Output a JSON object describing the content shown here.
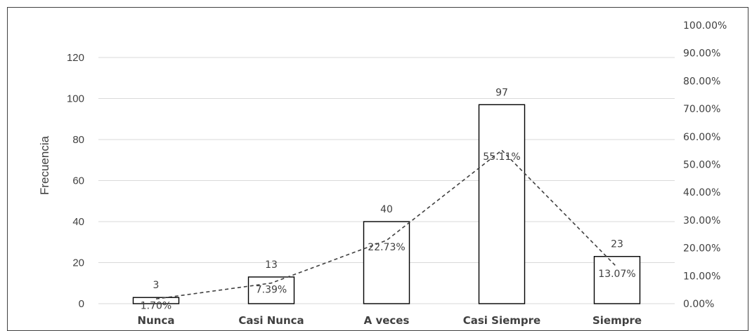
{
  "chart_data": {
    "type": "bar",
    "ylabel": "Frecuencia",
    "categories": [
      "Nunca",
      "Casi Nunca",
      "A veces",
      "Casi Siempre",
      "Siempre"
    ],
    "series": [
      {
        "type": "bar",
        "values": [
          3,
          13,
          40,
          97,
          23
        ]
      },
      {
        "type": "line",
        "axis": "right",
        "style": "dashed",
        "values": [
          1.7,
          7.39,
          22.73,
          55.11,
          13.07
        ]
      }
    ],
    "bar_labels": [
      "3",
      "13",
      "40",
      "97",
      "23"
    ],
    "pct_labels": [
      "1.70%",
      "7.39%",
      "22.73%",
      "55.11%",
      "13.07%"
    ],
    "ylim": [
      0,
      120
    ],
    "y_ticks": [
      "0",
      "20",
      "40",
      "60",
      "80",
      "100",
      "120"
    ],
    "y2lim": [
      0,
      100
    ],
    "y2_ticks": [
      "0.00%",
      "10.00%",
      "20.00%",
      "30.00%",
      "40.00%",
      "50.00%",
      "60.00%",
      "70.00%",
      "80.00%",
      "90.00%",
      "100.00%"
    ],
    "grid": true,
    "colors": {
      "bar_fill": "#ffffff",
      "bar_stroke": "#000000",
      "line": "#404040",
      "grid": "#d9d9d9",
      "text": "#404040"
    }
  }
}
